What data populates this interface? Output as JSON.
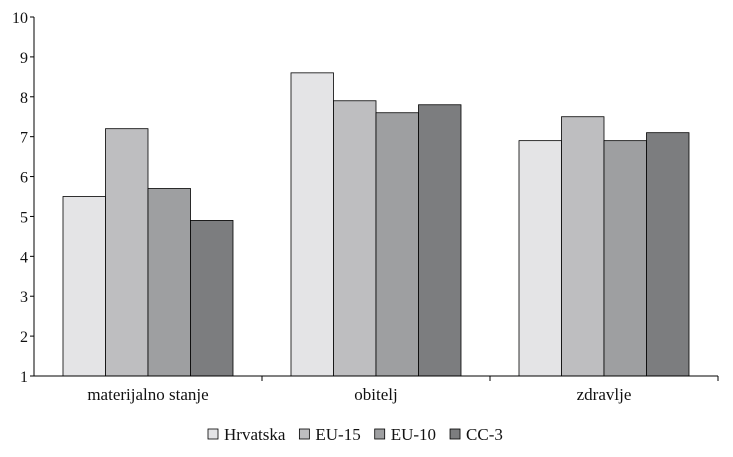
{
  "chart_data": {
    "type": "bar",
    "categories": [
      "materijalno stanje",
      "obitelj",
      "zdravlje"
    ],
    "series": [
      {
        "name": "Hrvatska",
        "values": [
          5.5,
          8.6,
          6.9
        ],
        "color": "#e4e4e6"
      },
      {
        "name": "EU-15",
        "values": [
          7.2,
          7.9,
          7.5
        ],
        "color": "#bebec0"
      },
      {
        "name": "EU-10",
        "values": [
          5.7,
          7.6,
          6.9
        ],
        "color": "#9e9fa1"
      },
      {
        "name": "CC-3",
        "values": [
          4.9,
          7.8,
          7.1
        ],
        "color": "#7c7d7f"
      }
    ],
    "ylim": [
      1,
      10
    ],
    "yticks": [
      1,
      2,
      3,
      4,
      5,
      6,
      7,
      8,
      9,
      10
    ],
    "grid": false,
    "legend_position": "bottom-center",
    "title": "",
    "xlabel": "",
    "ylabel": ""
  }
}
